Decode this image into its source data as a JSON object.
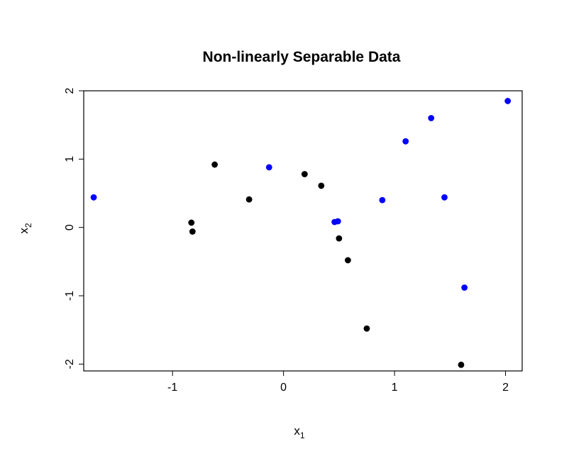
{
  "chart_data": {
    "type": "scatter",
    "title": "Non-linearly Separable Data",
    "xlabel": {
      "base": "x",
      "sub": "1"
    },
    "ylabel": {
      "base": "x",
      "sub": "2"
    },
    "xlim": [
      -1.8,
      2.15
    ],
    "ylim": [
      -2.1,
      2.0
    ],
    "x_ticks": [
      -1,
      0,
      1,
      2
    ],
    "x_tick_labels": [
      "-1",
      "0",
      "1",
      "2"
    ],
    "y_ticks": [
      -2,
      -1,
      0,
      1,
      2
    ],
    "y_tick_labels": [
      "-2",
      "-1",
      "0",
      "1",
      "2"
    ],
    "grid": false,
    "legend": null,
    "series": [
      {
        "color": "#0000ff",
        "points": [
          {
            "x": -1.71,
            "y": 0.44
          },
          {
            "x": -0.13,
            "y": 0.88
          },
          {
            "x": 0.46,
            "y": 0.08
          },
          {
            "x": 0.49,
            "y": 0.09
          },
          {
            "x": 0.89,
            "y": 0.4
          },
          {
            "x": 1.1,
            "y": 1.26
          },
          {
            "x": 1.33,
            "y": 1.6
          },
          {
            "x": 1.45,
            "y": 0.44
          },
          {
            "x": 1.63,
            "y": -0.88
          },
          {
            "x": 2.02,
            "y": 1.85
          }
        ]
      },
      {
        "color": "#000000",
        "points": [
          {
            "x": -0.83,
            "y": 0.07
          },
          {
            "x": -0.82,
            "y": -0.06
          },
          {
            "x": -0.62,
            "y": 0.92
          },
          {
            "x": -0.31,
            "y": 0.41
          },
          {
            "x": 0.19,
            "y": 0.78
          },
          {
            "x": 0.34,
            "y": 0.61
          },
          {
            "x": 0.5,
            "y": -0.16
          },
          {
            "x": 0.58,
            "y": -0.48
          },
          {
            "x": 0.75,
            "y": -1.48
          },
          {
            "x": 1.6,
            "y": -2.01
          }
        ]
      }
    ]
  }
}
